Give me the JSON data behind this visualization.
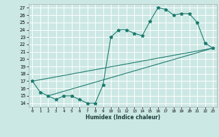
{
  "xlabel": "Humidex (Indice chaleur)",
  "bg_color": "#cce8e4",
  "line_color": "#1a7a6e",
  "grid_color": "#ffffff",
  "xlim": [
    -0.5,
    23.5
  ],
  "ylim": [
    13.5,
    27.5
  ],
  "xticks": [
    0,
    1,
    2,
    3,
    4,
    5,
    6,
    7,
    8,
    9,
    10,
    11,
    12,
    13,
    14,
    15,
    16,
    17,
    18,
    19,
    20,
    21,
    22,
    23
  ],
  "yticks": [
    14,
    15,
    16,
    17,
    18,
    19,
    20,
    21,
    22,
    23,
    24,
    25,
    26,
    27
  ],
  "line1_x": [
    0,
    1,
    2,
    3,
    4,
    5,
    6,
    7,
    8,
    9,
    10,
    11,
    12,
    13,
    14,
    15,
    16,
    17,
    18,
    19,
    20,
    21,
    22,
    23
  ],
  "line1_y": [
    17,
    15.5,
    15,
    14.5,
    15,
    15,
    14.5,
    14,
    14,
    16.5,
    23,
    24,
    24,
    23.5,
    23.2,
    25.2,
    27,
    26.8,
    26,
    26.2,
    26.2,
    25,
    22.2,
    21.5
  ],
  "line2_x": [
    0,
    23
  ],
  "line2_y": [
    17,
    21.5
  ],
  "line3_x": [
    2,
    23
  ],
  "line3_y": [
    15,
    21.5
  ]
}
